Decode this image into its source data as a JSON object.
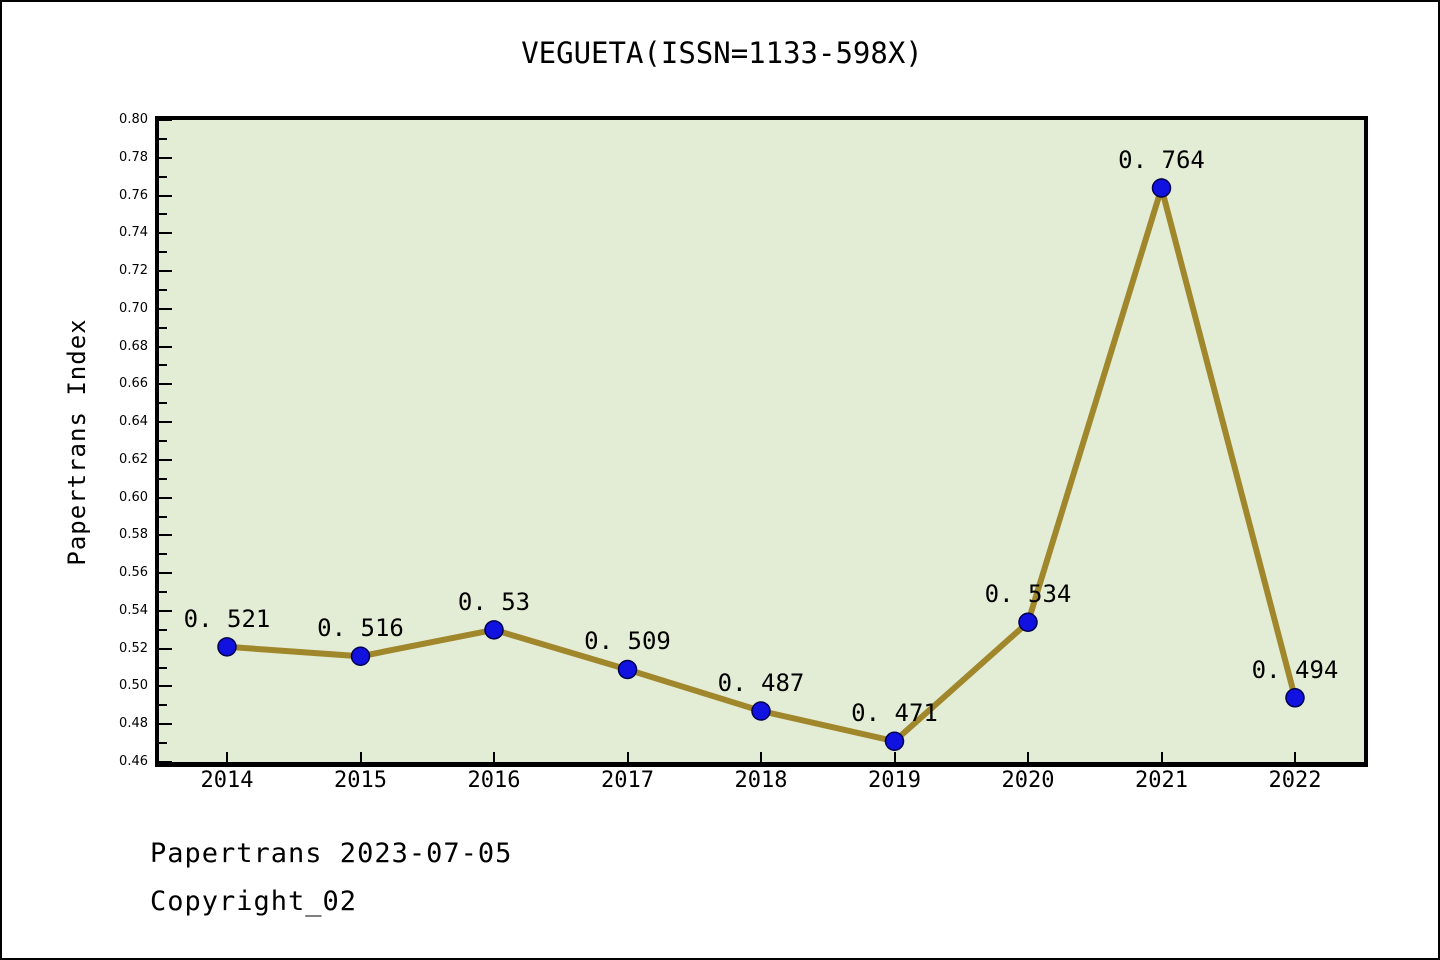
{
  "figure": {
    "title": "VEGUETA(ISSN=1133-598X)"
  },
  "footer": {
    "line1": "Papertrans 2023-07-05",
    "line2": "Copyright_02"
  },
  "chart_data": {
    "type": "line",
    "title": "VEGUETA(ISSN=1133-598X)",
    "xlabel": "",
    "ylabel": "Papertrans Index",
    "categories": [
      "2014",
      "2015",
      "2016",
      "2017",
      "2018",
      "2019",
      "2020",
      "2021",
      "2022"
    ],
    "series": [
      {
        "name": "Papertrans Index",
        "values": [
          0.521,
          0.516,
          0.53,
          0.509,
          0.487,
          0.471,
          0.534,
          0.764,
          0.494
        ]
      }
    ],
    "point_labels": [
      "0. 521",
      "0. 516",
      "0. 53",
      "0. 509",
      "0. 487",
      "0. 471",
      "0. 534",
      "0. 764",
      "0. 494"
    ],
    "ylim": [
      0.46,
      0.8
    ],
    "y_major_step": 0.02,
    "y_minor_step": 0.01,
    "grid": false,
    "legend": "none",
    "colors": {
      "plot_background": "#E3EDD5",
      "line": "#A1872B",
      "marker_fill": "#1212E0",
      "marker_edge": "#000050",
      "text": "#000000",
      "figure_background": "#FFFFFF",
      "border": "#000000"
    }
  }
}
